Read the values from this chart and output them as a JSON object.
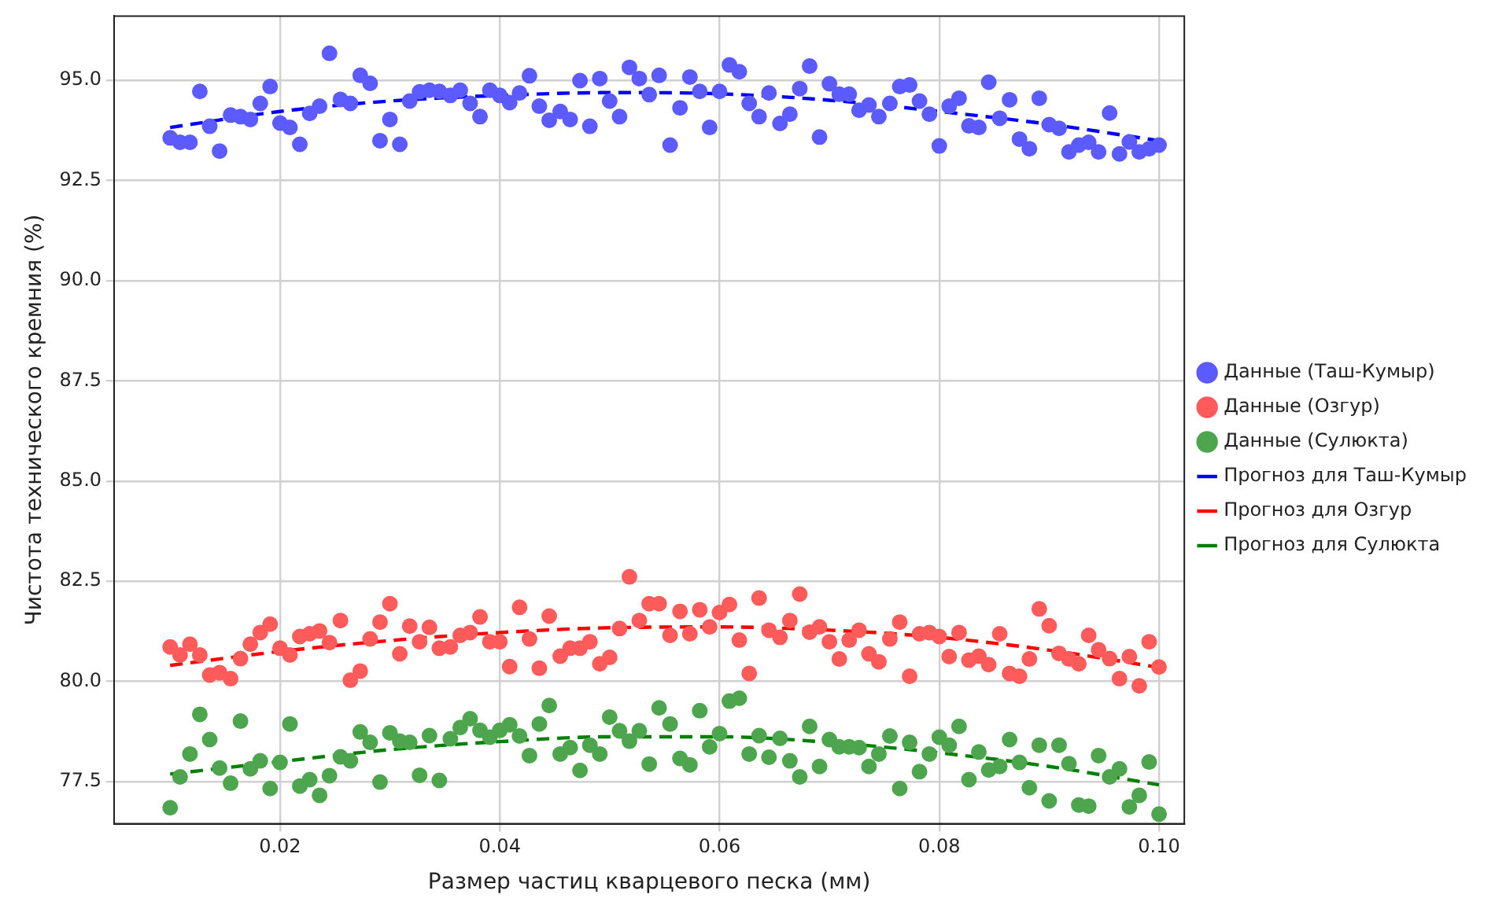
{
  "chart_data": {
    "type": "scatter",
    "xlabel": "Размер частиц кварцевого песка (мм)",
    "ylabel": "Чистота технического кремния (%)",
    "xlim": [
      0.0049,
      0.1023
    ],
    "ylim": [
      76.45,
      96.6
    ],
    "xticks": [
      {
        "value": 0.02,
        "label": "0.02"
      },
      {
        "value": 0.04,
        "label": "0.04"
      },
      {
        "value": 0.06,
        "label": "0.06"
      },
      {
        "value": 0.08,
        "label": "0.08"
      },
      {
        "value": 0.1,
        "label": "0.10"
      }
    ],
    "yticks": [
      {
        "value": 77.5,
        "label": "77.5"
      },
      {
        "value": 80,
        "label": "80.0"
      },
      {
        "value": 82.5,
        "label": "82.5"
      },
      {
        "value": 85,
        "label": "85.0"
      },
      {
        "value": 87.5,
        "label": "87.5"
      },
      {
        "value": 90,
        "label": "90.0"
      },
      {
        "value": 92.5,
        "label": "92.5"
      },
      {
        "value": 95,
        "label": "95.0"
      }
    ],
    "grid": true,
    "legend": "right",
    "marker": "circle",
    "x": [
      0.01,
      0.0109,
      0.0118,
      0.0127,
      0.0136,
      0.0145,
      0.0155,
      0.0164,
      0.0173,
      0.0182,
      0.0191,
      0.02,
      0.0209,
      0.0218,
      0.0227,
      0.0236,
      0.0245,
      0.0255,
      0.0264,
      0.0273,
      0.0282,
      0.0291,
      0.03,
      0.0309,
      0.0318,
      0.0327,
      0.0336,
      0.0345,
      0.0355,
      0.0364,
      0.0373,
      0.0382,
      0.0391,
      0.04,
      0.0409,
      0.0418,
      0.0427,
      0.0436,
      0.0445,
      0.0455,
      0.0464,
      0.0473,
      0.0482,
      0.0491,
      0.05,
      0.0509,
      0.0518,
      0.0527,
      0.0536,
      0.0545,
      0.0555,
      0.0564,
      0.0573,
      0.0582,
      0.0591,
      0.06,
      0.0609,
      0.0618,
      0.0627,
      0.0636,
      0.0645,
      0.0655,
      0.0664,
      0.0673,
      0.0682,
      0.0691,
      0.07,
      0.0709,
      0.0718,
      0.0727,
      0.0736,
      0.0745,
      0.0755,
      0.0764,
      0.0773,
      0.0782,
      0.0791,
      0.08,
      0.0809,
      0.0818,
      0.0827,
      0.0836,
      0.0845,
      0.0855,
      0.0864,
      0.0873,
      0.0882,
      0.0891,
      0.09,
      0.0909,
      0.0918,
      0.0927,
      0.0936,
      0.0945,
      0.0955,
      0.0964,
      0.0973,
      0.0982,
      0.0991,
      0.1
    ],
    "series": [
      {
        "name": "Данные (Таш-Кумыр)",
        "color": "#5b5bff",
        "values": [
          93.56,
          93.45,
          93.45,
          94.72,
          93.85,
          93.23,
          94.13,
          94.09,
          94.02,
          94.42,
          94.84,
          93.93,
          93.82,
          93.4,
          94.17,
          94.35,
          95.67,
          94.52,
          94.42,
          95.12,
          94.92,
          93.49,
          94.02,
          93.4,
          94.48,
          94.71,
          94.75,
          94.72,
          94.62,
          94.75,
          94.42,
          94.09,
          94.75,
          94.62,
          94.44,
          94.68,
          95.11,
          94.35,
          94.0,
          94.22,
          94.02,
          94.99,
          93.85,
          95.04,
          94.48,
          94.09,
          95.32,
          95.04,
          94.64,
          95.12,
          93.38,
          94.31,
          95.08,
          94.72,
          93.82,
          94.72,
          95.38,
          95.21,
          94.42,
          94.09,
          94.68,
          93.92,
          94.15,
          94.79,
          95.35,
          93.58,
          94.91,
          94.65,
          94.65,
          94.25,
          94.38,
          94.09,
          94.42,
          94.84,
          94.88,
          94.48,
          94.15,
          93.36,
          94.35,
          94.55,
          93.86,
          93.82,
          94.95,
          94.05,
          94.51,
          93.53,
          93.29,
          94.55,
          93.89,
          93.8,
          93.21,
          93.38,
          93.45,
          93.21,
          94.18,
          93.16,
          93.46,
          93.21,
          93.29,
          93.38
        ]
      },
      {
        "name": "Данные (Озгур)",
        "color": "#ff5b5b",
        "values": [
          80.86,
          80.66,
          80.93,
          80.66,
          80.16,
          80.22,
          80.07,
          80.57,
          80.93,
          81.22,
          81.43,
          80.83,
          80.66,
          81.12,
          81.19,
          81.26,
          80.97,
          81.52,
          80.03,
          80.26,
          81.06,
          81.48,
          81.94,
          80.69,
          81.38,
          80.99,
          81.35,
          80.83,
          80.86,
          81.15,
          81.22,
          81.61,
          80.99,
          80.99,
          80.37,
          81.85,
          81.06,
          80.33,
          81.63,
          80.63,
          80.83,
          80.83,
          80.99,
          80.44,
          80.6,
          81.32,
          82.61,
          81.52,
          81.94,
          81.94,
          81.15,
          81.75,
          81.19,
          81.79,
          81.36,
          81.72,
          81.92,
          81.03,
          80.2,
          82.08,
          81.28,
          81.1,
          81.52,
          82.18,
          81.23,
          81.36,
          80.99,
          80.56,
          81.03,
          81.28,
          80.69,
          80.49,
          81.06,
          81.48,
          80.13,
          81.19,
          81.22,
          81.12,
          80.62,
          81.22,
          80.53,
          80.63,
          80.42,
          81.19,
          80.2,
          80.13,
          80.56,
          81.81,
          81.39,
          80.7,
          80.56,
          80.44,
          81.15,
          80.79,
          80.57,
          80.07,
          80.62,
          79.89,
          80.99,
          80.36
        ]
      },
      {
        "name": "Данные (Сулюкта)",
        "color": "#4da64d",
        "values": [
          76.85,
          77.62,
          78.19,
          79.18,
          78.55,
          77.84,
          77.46,
          79.01,
          77.82,
          78.02,
          77.33,
          77.98,
          78.94,
          77.39,
          77.55,
          77.16,
          77.65,
          78.12,
          78.02,
          78.74,
          78.48,
          77.49,
          78.72,
          78.51,
          78.48,
          77.66,
          78.65,
          77.53,
          78.57,
          78.85,
          79.07,
          78.78,
          78.61,
          78.78,
          78.92,
          78.64,
          78.15,
          78.94,
          79.4,
          78.19,
          78.35,
          77.78,
          78.41,
          78.19,
          79.11,
          78.77,
          78.51,
          78.77,
          77.94,
          79.34,
          78.94,
          78.08,
          77.92,
          79.27,
          78.37,
          78.7,
          79.51,
          79.58,
          78.19,
          78.65,
          78.11,
          78.58,
          78.02,
          77.62,
          78.88,
          77.88,
          78.55,
          78.37,
          78.37,
          78.35,
          77.88,
          78.19,
          78.64,
          77.33,
          78.48,
          77.75,
          78.19,
          78.61,
          78.41,
          78.88,
          77.55,
          78.24,
          77.79,
          77.88,
          78.55,
          77.98,
          77.35,
          78.41,
          77.02,
          78.41,
          77.95,
          76.92,
          76.89,
          78.15,
          77.62,
          77.82,
          76.87,
          77.16,
          77.99,
          76.69
        ]
      },
      {
        "name": "Прогноз для Таш-Кумыр",
        "type": "line",
        "line_style": "dashed",
        "marker": "none",
        "color": "#0000ff",
        "x": [
          0.01,
          0.02,
          0.03,
          0.04,
          0.05,
          0.06,
          0.07,
          0.08,
          0.09,
          0.1
        ],
        "values": [
          93.82,
          94.22,
          94.48,
          94.62,
          94.69,
          94.66,
          94.5,
          94.22,
          93.9,
          93.49
        ]
      },
      {
        "name": "Прогноз для Озгур",
        "type": "line",
        "line_style": "dashed",
        "marker": "none",
        "color": "#ff0000",
        "x": [
          0.01,
          0.02,
          0.03,
          0.04,
          0.05,
          0.06,
          0.07,
          0.08,
          0.09,
          0.1
        ],
        "values": [
          80.4,
          80.75,
          81.02,
          81.22,
          81.34,
          81.36,
          81.28,
          81.1,
          80.78,
          80.35
        ]
      },
      {
        "name": "Прогноз для Сулюкта",
        "type": "line",
        "line_style": "dashed",
        "marker": "none",
        "color": "#008000",
        "x": [
          0.01,
          0.02,
          0.03,
          0.04,
          0.05,
          0.06,
          0.07,
          0.08,
          0.09,
          0.1
        ],
        "values": [
          77.69,
          78.0,
          78.3,
          78.5,
          78.62,
          78.62,
          78.48,
          78.22,
          77.88,
          77.42
        ]
      }
    ]
  }
}
